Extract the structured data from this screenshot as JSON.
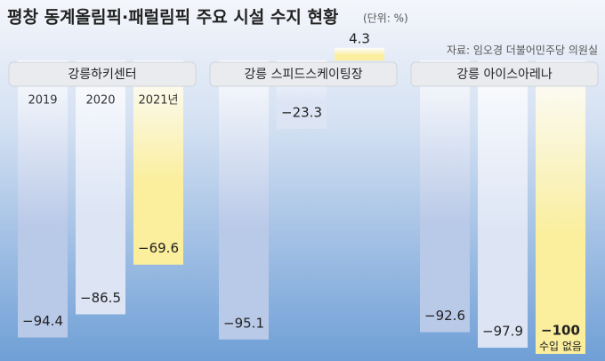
{
  "chart_data": {
    "type": "bar",
    "title": "평창 동계올림픽·패럴림픽 주요 시설 수지 현황",
    "subtitle": "(단위: %)",
    "source": "자료: 임오경 더불어민주당 의원실",
    "categories": [
      "강릉하키센터",
      "강릉 스피드스케이팅장",
      "강릉 아이스아레나"
    ],
    "series": [
      {
        "name": "2019",
        "color": "#b9c9e8",
        "values": [
          -94.4,
          -95.1,
          -92.6
        ],
        "value_labels": [
          "−94.4",
          "−95.1",
          "−92.6"
        ]
      },
      {
        "name": "2020",
        "color": "#dde5f5",
        "values": [
          -86.5,
          -23.3,
          -97.9
        ],
        "value_labels": [
          "−86.5",
          "−23.3",
          "−97.9"
        ]
      },
      {
        "name": "2021년",
        "color": "#fbee9c",
        "values": [
          -69.6,
          4.3,
          -100
        ],
        "value_labels": [
          "−69.6",
          "4.3",
          "−100"
        ]
      }
    ],
    "annotation": "수입 없음"
  }
}
